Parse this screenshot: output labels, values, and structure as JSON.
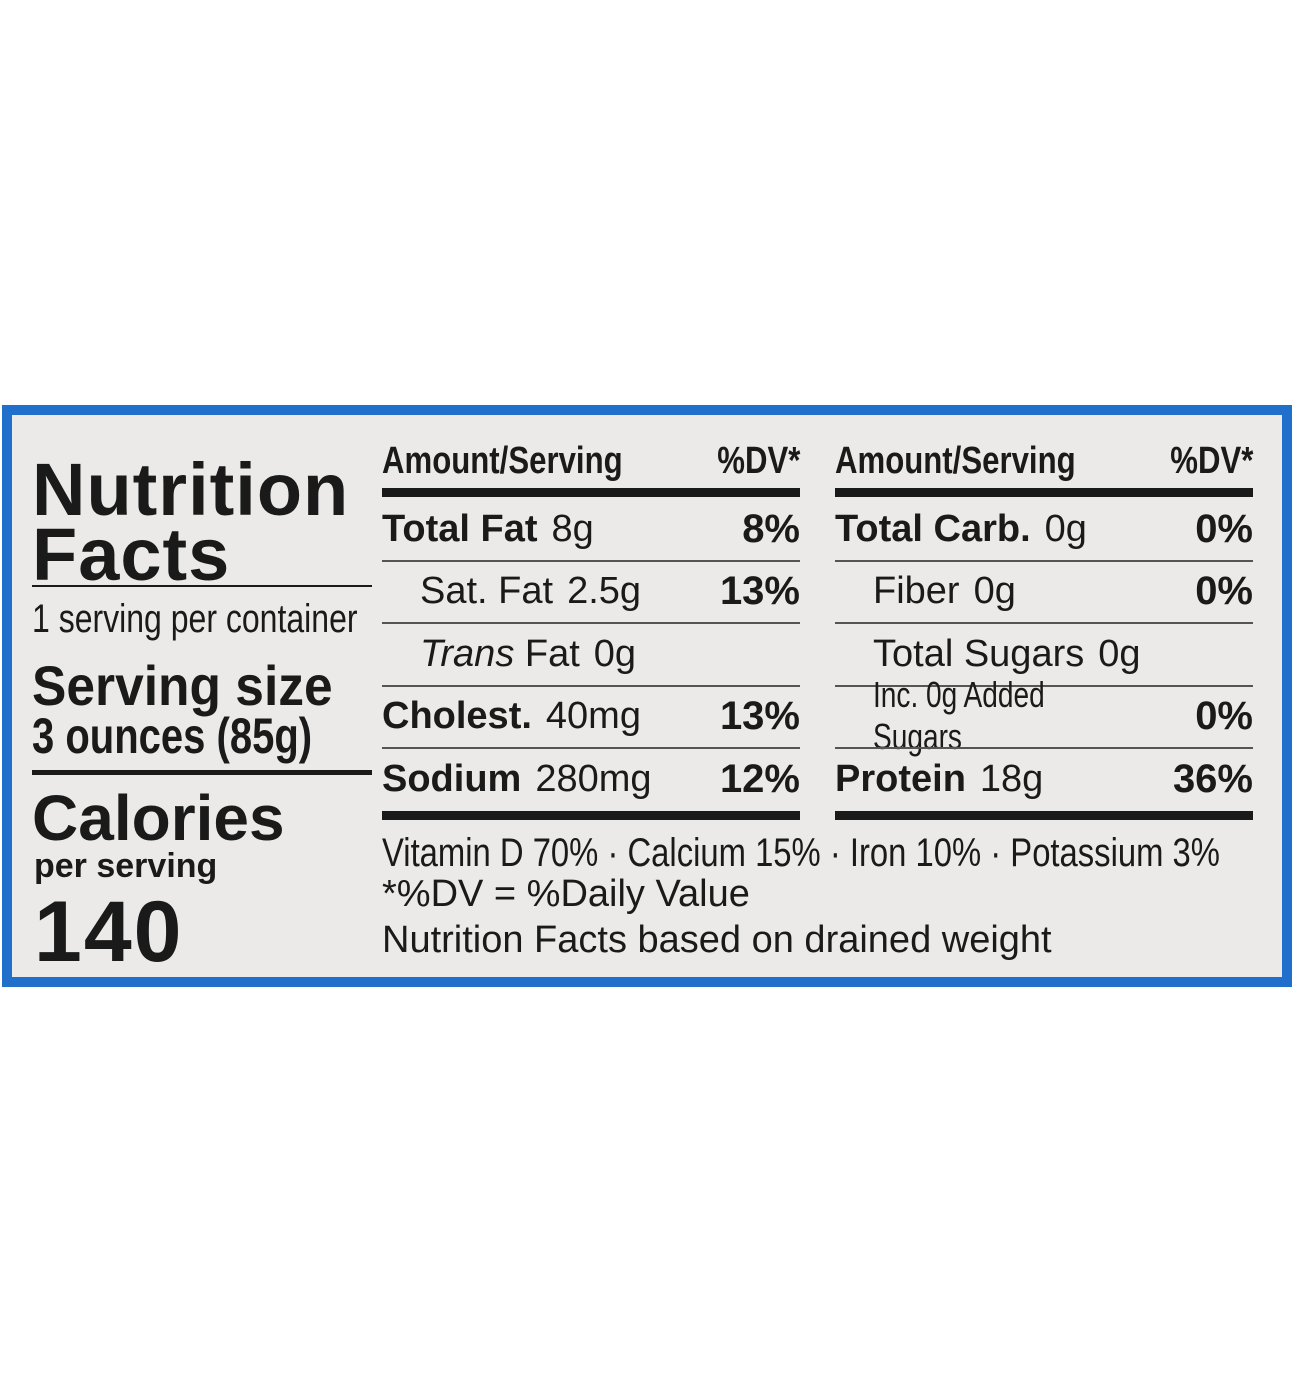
{
  "label": {
    "title_lines": [
      "Nutrition",
      "Facts"
    ],
    "servings": "1 serving per container",
    "serving_size_label": "Serving size",
    "serving_size": "3 ounces (85g)",
    "calories_label": "Calories",
    "calories_sub": "per serving",
    "calories": "140",
    "columns": [
      {
        "header": {
          "amount": "Amount/Serving",
          "dv": "%DV*"
        },
        "rows": [
          {
            "name": "Total Fat",
            "amount": "8g",
            "dv": "8%"
          },
          {
            "name": "Sat. Fat",
            "amount": "2.5g",
            "dv": "13%"
          },
          {
            "name_italic": "Trans",
            "name": "Fat",
            "amount": "0g"
          },
          {
            "name": "Cholest.",
            "amount": "40mg",
            "dv": "13%"
          },
          {
            "name": "Sodium",
            "amount": "280mg",
            "dv": "12%"
          }
        ]
      },
      {
        "header": {
          "amount": "Amount/Serving",
          "dv": "%DV*"
        },
        "rows": [
          {
            "name": "Total Carb.",
            "amount": "0g",
            "dv": "0%"
          },
          {
            "name": "Fiber",
            "amount": "0g",
            "dv": "0%"
          },
          {
            "name": "Total Sugars",
            "amount": "0g"
          },
          {
            "name": "Inc. 0g Added Sugars",
            "dv": "0%"
          },
          {
            "name": "Protein",
            "amount": "18g",
            "dv": "36%"
          }
        ]
      }
    ],
    "vitamins": [
      "Vitamin D 70%",
      "Calcium 15%",
      "Iron 10%",
      "Potassium 3%"
    ],
    "footnotes": [
      "*%DV = %Daily Value",
      "Nutrition Facts based on drained weight"
    ]
  }
}
